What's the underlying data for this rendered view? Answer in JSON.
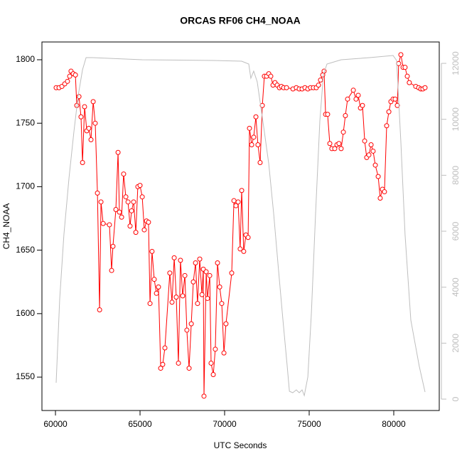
{
  "chart_data": {
    "type": "line",
    "title": "ORCAS RF06 CH4_NOAA",
    "x_label": "UTC Seconds",
    "y_label": "CH4_NOAA",
    "xlim": [
      59200,
      82690
    ],
    "xticks": [
      60000,
      65000,
      70000,
      75000,
      80000
    ],
    "ylim": [
      1523.7,
      1814
    ],
    "yticks": [
      1550,
      1600,
      1650,
      1700,
      1750,
      1800
    ],
    "y2lim": [
      -407,
      12764
    ],
    "y2ticks": [
      0,
      2000,
      4000,
      6000,
      8000,
      10000,
      12000
    ],
    "series": [
      {
        "color": "#ff0000",
        "markers": true,
        "x": [
          60040,
          60210,
          60380,
          60550,
          60710,
          60840,
          60920,
          61050,
          61180,
          61260,
          61390,
          61510,
          61600,
          61720,
          61850,
          61970,
          62100,
          62230,
          62350,
          62480,
          62610,
          62690,
          62820,
          63190,
          63320,
          63400,
          63570,
          63700,
          63780,
          63910,
          64030,
          64160,
          64290,
          64410,
          64500,
          64620,
          64750,
          64870,
          65000,
          65130,
          65250,
          65380,
          65500,
          65590,
          65710,
          65840,
          65970,
          66090,
          66220,
          66340,
          66470,
          66760,
          66890,
          67020,
          67140,
          67270,
          67390,
          67520,
          67650,
          67770,
          67900,
          68030,
          68150,
          68280,
          68400,
          68530,
          68660,
          68740,
          68780,
          68910,
          68990,
          69120,
          69200,
          69330,
          69450,
          69580,
          69710,
          69830,
          69960,
          70080,
          70420,
          70550,
          70670,
          70800,
          70920,
          71010,
          71130,
          71260,
          71390,
          71470,
          71600,
          71720,
          71850,
          71970,
          72100,
          72230,
          72350,
          72480,
          72610,
          72730,
          72860,
          72980,
          73110,
          73240,
          73360,
          73490,
          73660,
          74040,
          74240,
          74410,
          74580,
          74750,
          74920,
          75080,
          75250,
          75420,
          75550,
          75670,
          75800,
          75880,
          75970,
          76090,
          76220,
          76340,
          76510,
          76640,
          76760,
          76890,
          77020,
          77140,
          77270,
          77610,
          77770,
          77900,
          78030,
          78150,
          78280,
          78400,
          78530,
          78660,
          78780,
          78910,
          79080,
          79200,
          79330,
          79450,
          79580,
          79710,
          79830,
          79960,
          80080,
          80210,
          80290,
          80420,
          80550,
          80670,
          80800,
          80920,
          81300,
          81470,
          81600,
          81720,
          81850
        ],
        "values": [
          1778,
          1778,
          1779,
          1781,
          1783,
          1787,
          1791,
          1789,
          1788,
          1764,
          1771,
          1755,
          1719,
          1763,
          1744,
          1746,
          1737,
          1767,
          1750,
          1695,
          1603,
          1688,
          1671,
          1670,
          1634,
          1653,
          1682,
          1727,
          1680,
          1676,
          1710,
          1692,
          1688,
          1669,
          1681,
          1688,
          1664,
          1700,
          1701,
          1692,
          1666,
          1673,
          1672,
          1608,
          1649,
          1627,
          1616,
          1621,
          1557,
          1560,
          1573,
          1632,
          1609,
          1644,
          1613,
          1561,
          1642,
          1614,
          1630,
          1587,
          1557,
          1592,
          1625,
          1640,
          1608,
          1643,
          1615,
          1635,
          1535,
          1633,
          1612,
          1630,
          1561,
          1552,
          1572,
          1640,
          1621,
          1608,
          1569,
          1592,
          1632,
          1689,
          1685,
          1688,
          1651,
          1697,
          1649,
          1662,
          1660,
          1746,
          1733,
          1739,
          1755,
          1733,
          1719,
          1764,
          1787,
          1787,
          1789,
          1787,
          1780,
          1782,
          1780,
          1778,
          1779,
          1778,
          1778,
          1777,
          1778,
          1777,
          1777,
          1778,
          1777,
          1778,
          1778,
          1778,
          1780,
          1784,
          1788,
          1791,
          1757,
          1757,
          1734,
          1730,
          1730,
          1733,
          1734,
          1730,
          1743,
          1756,
          1769,
          1776,
          1769,
          1772,
          1762,
          1764,
          1736,
          1723,
          1725,
          1733,
          1728,
          1717,
          1708,
          1691,
          1698,
          1696,
          1748,
          1759,
          1767,
          1769,
          1769,
          1764,
          1797,
          1804,
          1794,
          1794,
          1787,
          1782,
          1779,
          1778,
          1777,
          1777,
          1778
        ]
      },
      {
        "color": "#bebebe",
        "axis": "y2",
        "markers": false,
        "x": [
          60040,
          60250,
          60500,
          60800,
          61090,
          61340,
          61600,
          61810,
          62190,
          65130,
          69330,
          71010,
          71430,
          71550,
          71720,
          71930,
          72350,
          72610,
          72900,
          73190,
          73450,
          73700,
          73830,
          74030,
          74240,
          74410,
          74580,
          74710,
          74920,
          75130,
          75380,
          75630,
          75840,
          76050,
          76470,
          76890,
          78570,
          79960,
          80170,
          80420,
          80670,
          81010,
          81510,
          81850
        ],
        "values": [
          585,
          3585,
          5873,
          7907,
          9560,
          10831,
          11772,
          12204,
          12204,
          12128,
          12103,
          12077,
          11975,
          11467,
          11721,
          11340,
          9560,
          8416,
          6636,
          4602,
          2822,
          1170,
          280,
          229,
          331,
          229,
          331,
          127,
          788,
          3077,
          6636,
          9942,
          11594,
          11975,
          12052,
          12128,
          12204,
          12281,
          12103,
          9179,
          5873,
          2822,
          1170,
          254
        ]
      }
    ]
  }
}
